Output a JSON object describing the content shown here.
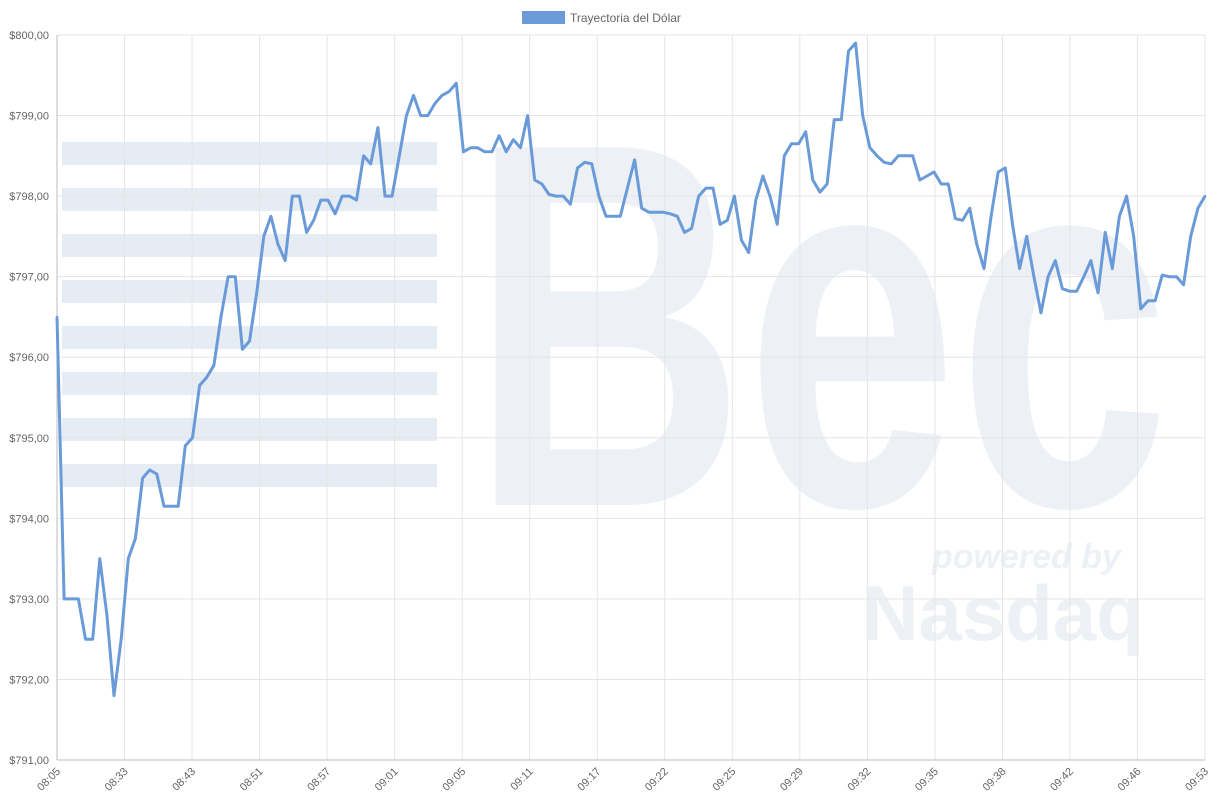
{
  "colors": {
    "line": "#6a9bd8",
    "legend_swatch": "#6a9bd8",
    "grid": "#e5e5e5",
    "watermark": "#e6ecf4"
  },
  "watermark": {
    "brand": "Bec",
    "powered": "powered by",
    "partner": "Nasdaq"
  },
  "chart_data": {
    "type": "line",
    "legend": {
      "position": "top-center"
    },
    "grid": true,
    "ylim": [
      791,
      800
    ],
    "y_ticks": [
      "$791,00",
      "$792,00",
      "$793,00",
      "$794,00",
      "$795,00",
      "$796,00",
      "$797,00",
      "$798,00",
      "$799,00",
      "$800,00"
    ],
    "x_tick_labels": [
      "08:05",
      "08:33",
      "08:43",
      "08:51",
      "08:57",
      "09:01",
      "09:05",
      "09:11",
      "09:17",
      "09:22",
      "09:25",
      "09:29",
      "09:32",
      "09:35",
      "09:38",
      "09:42",
      "09:46",
      "09:53"
    ],
    "series": [
      {
        "name": "Trayectoria del Dólar",
        "values": [
          796.5,
          793.0,
          793.0,
          793.0,
          792.5,
          792.5,
          793.5,
          792.8,
          791.8,
          792.5,
          793.5,
          793.75,
          794.5,
          794.6,
          794.55,
          794.15,
          794.15,
          794.15,
          794.9,
          795.0,
          795.65,
          795.75,
          795.9,
          796.5,
          797.0,
          797.0,
          796.1,
          796.2,
          796.8,
          797.5,
          797.75,
          797.4,
          797.2,
          798.0,
          798.0,
          797.55,
          797.7,
          797.95,
          797.95,
          797.78,
          798.0,
          798.0,
          797.95,
          798.5,
          798.4,
          798.85,
          798.0,
          798.0,
          798.5,
          799.0,
          799.25,
          799.0,
          799.0,
          799.15,
          799.25,
          799.3,
          799.4,
          798.55,
          798.6,
          798.6,
          798.55,
          798.55,
          798.75,
          798.55,
          798.7,
          798.6,
          799.0,
          798.2,
          798.15,
          798.02,
          798.0,
          798.0,
          797.9,
          798.35,
          798.42,
          798.4,
          798.0,
          797.75,
          797.75,
          797.75,
          798.1,
          798.45,
          797.85,
          797.8,
          797.8,
          797.8,
          797.78,
          797.75,
          797.55,
          797.6,
          798.0,
          798.1,
          798.1,
          797.65,
          797.7,
          798.0,
          797.45,
          797.3,
          797.95,
          798.25,
          798.0,
          797.65,
          798.5,
          798.65,
          798.65,
          798.8,
          798.2,
          798.05,
          798.15,
          798.95,
          798.95,
          799.8,
          799.9,
          799.0,
          798.6,
          798.5,
          798.42,
          798.4,
          798.5,
          798.5,
          798.5,
          798.2,
          798.25,
          798.3,
          798.15,
          798.15,
          797.72,
          797.7,
          797.85,
          797.4,
          797.1,
          797.75,
          798.3,
          798.35,
          797.65,
          797.1,
          797.5,
          797.0,
          796.55,
          797.0,
          797.2,
          796.85,
          796.82,
          796.82,
          797.0,
          797.2,
          796.8,
          797.55,
          797.1,
          797.75,
          798.0,
          797.5,
          796.6,
          796.7,
          796.7,
          797.02,
          797.0,
          797.0,
          796.9,
          797.5,
          797.85,
          798.0
        ]
      }
    ]
  }
}
